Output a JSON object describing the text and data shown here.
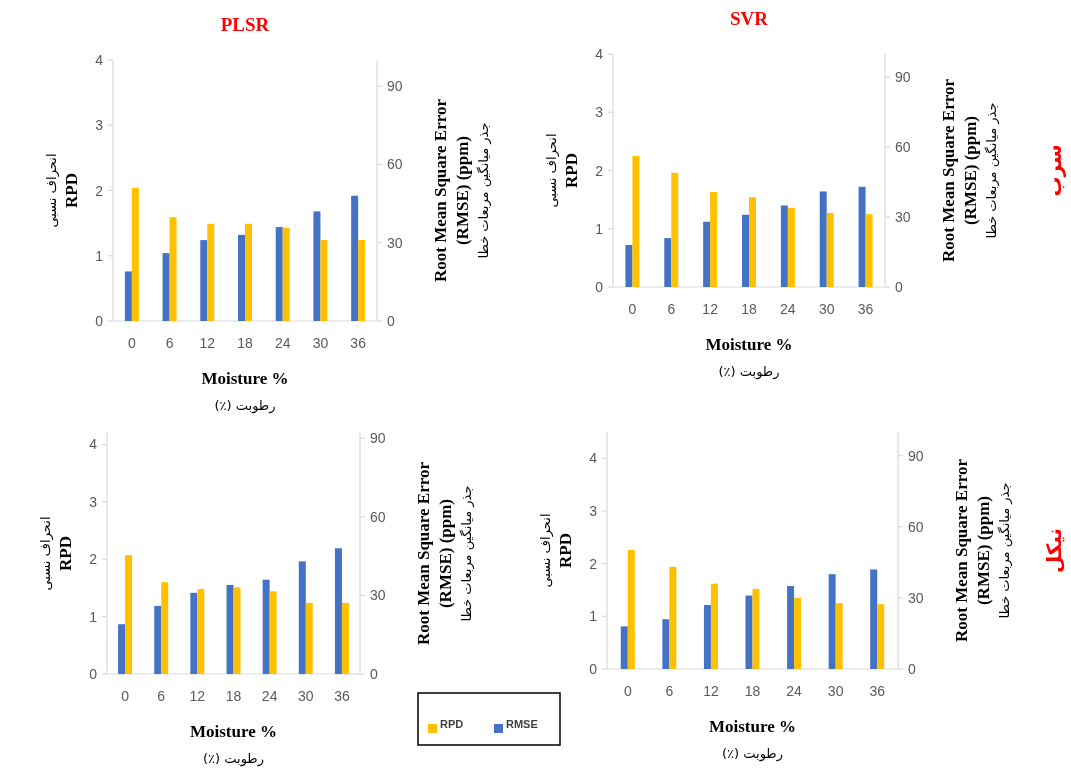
{
  "chart_data": [
    {
      "type": "bar",
      "title": "PLSR",
      "xlabel": "Moisture %",
      "ylabel": "RPD",
      "y2label": "Root Mean Square Error (RMSE) (ppm)",
      "annotations": [
        "انحراف نسبی",
        "جذر میانگین مربعات خطا",
        "رطوبت (٪)"
      ],
      "categories": [
        "0",
        "6",
        "12",
        "18",
        "24",
        "30",
        "36"
      ],
      "series": [
        {
          "color": "#4472c4",
          "axis": "y2",
          "values": [
            19,
            26,
            31,
            33,
            36,
            42,
            48
          ]
        },
        {
          "color": "#ffc000",
          "values": [
            2.04,
            1.59,
            1.49,
            1.49,
            1.43,
            1.24,
            1.24
          ]
        }
      ],
      "ylim": [
        0,
        4
      ],
      "yticks": [
        0,
        1,
        2,
        3,
        4
      ],
      "y2lim": [
        0,
        100
      ],
      "y2ticks": [
        0,
        30,
        60,
        90
      ]
    },
    {
      "type": "bar",
      "title": "SVR",
      "xlabel": "Moisture %",
      "ylabel": "RPD",
      "y2label": "Root Mean Square Error (RMSE) (ppm)",
      "annotations": [
        "انحراف نسبی",
        "جذر میانگین مربعات خطا",
        "رطوبت (٪)",
        "سرب"
      ],
      "categories": [
        "0",
        "6",
        "12",
        "18",
        "24",
        "30",
        "36"
      ],
      "series": [
        {
          "color": "#4472c4",
          "axis": "y2",
          "values": [
            18,
            21,
            28,
            31,
            35,
            41,
            43
          ]
        },
        {
          "color": "#ffc000",
          "values": [
            2.25,
            1.96,
            1.63,
            1.54,
            1.36,
            1.27,
            1.25
          ]
        }
      ],
      "ylim": [
        0,
        4
      ],
      "yticks": [
        0,
        1,
        2,
        3,
        4
      ],
      "y2lim": [
        0,
        100
      ],
      "y2ticks": [
        0,
        30,
        60,
        90
      ]
    },
    {
      "type": "bar",
      "xlabel": "Moisture %",
      "ylabel": "RPD",
      "y2label": "Root Mean Square Error (RMSE) (ppm)",
      "annotations": [
        "انحراف نسبی",
        "جذر میانگین مربعات خطا",
        "رطوبت (٪)"
      ],
      "categories": [
        "0",
        "6",
        "12",
        "18",
        "24",
        "30",
        "36"
      ],
      "series": [
        {
          "name": "RMSE",
          "color": "#4472c4",
          "axis": "y2",
          "values": [
            19,
            26,
            31,
            34,
            36,
            43,
            48
          ]
        },
        {
          "name": "RPD",
          "color": "#ffc000",
          "values": [
            2.07,
            1.6,
            1.48,
            1.51,
            1.44,
            1.24,
            1.24
          ]
        }
      ],
      "ylim": [
        0,
        4.2
      ],
      "yticks": [
        0,
        1,
        2,
        3,
        4
      ],
      "y2lim": [
        0,
        92
      ],
      "y2ticks": [
        0,
        30,
        60,
        90
      ],
      "legend": "bottom right"
    },
    {
      "type": "bar",
      "xlabel": "Moisture %",
      "ylabel": "RPD",
      "y2label": "Root Mean Square Error (RMSE) (ppm)",
      "annotations": [
        "انحراف نسبی",
        "جذر میانگین مربعات خطا",
        "رطوبت (٪)",
        "نیکل"
      ],
      "categories": [
        "0",
        "6",
        "12",
        "18",
        "24",
        "30",
        "36"
      ],
      "series": [
        {
          "color": "#4472c4",
          "axis": "y2",
          "values": [
            18,
            21,
            27,
            31,
            35,
            40,
            42
          ]
        },
        {
          "color": "#ffc000",
          "values": [
            2.26,
            1.94,
            1.62,
            1.52,
            1.35,
            1.25,
            1.23
          ]
        }
      ],
      "ylim": [
        0,
        4.5
      ],
      "yticks": [
        0,
        1,
        2,
        3,
        4
      ],
      "y2lim": [
        0,
        100
      ],
      "y2ticks": [
        0,
        30,
        60,
        90
      ]
    }
  ]
}
